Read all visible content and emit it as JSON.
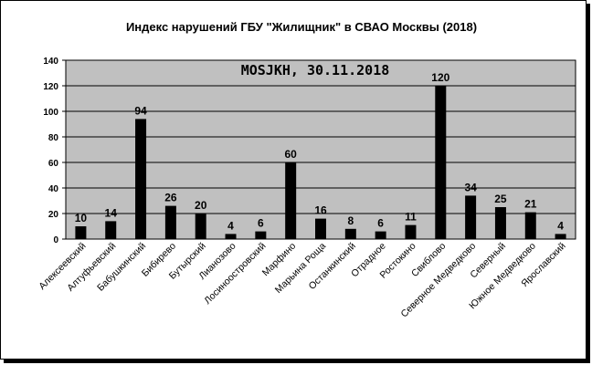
{
  "chart_data": {
    "type": "bar",
    "title": "Индекс нарушений ГБУ \"Жилищник\" в СВАО Москвы (2018)",
    "annotation": "MOSJKH, 30.11.2018",
    "categories": [
      "Алексеевский",
      "Алтуфьевский",
      "Бабушкинский",
      "Бибирево",
      "Бутырский",
      "Лианозово",
      "Лосиноостровский",
      "Марфино",
      "Марьина Роща",
      "Останкинский",
      "Отрадное",
      "Ростокино",
      "Свиблово",
      "Северное Медведково",
      "Северный",
      "Южное Медведково",
      "Ярославский"
    ],
    "values": [
      10,
      14,
      94,
      26,
      20,
      4,
      6,
      60,
      16,
      8,
      6,
      11,
      120,
      34,
      25,
      21,
      4
    ],
    "ylim": [
      0,
      140
    ],
    "yticks": [
      0,
      20,
      40,
      60,
      80,
      100,
      120,
      140
    ],
    "ytick_labels": [
      "0",
      "20",
      "40",
      "60",
      "80",
      "100",
      "120",
      "140"
    ],
    "grid": true,
    "legend": "none",
    "colors": {
      "bar": "#000000",
      "plot_bg": "#c0c0c0"
    }
  }
}
